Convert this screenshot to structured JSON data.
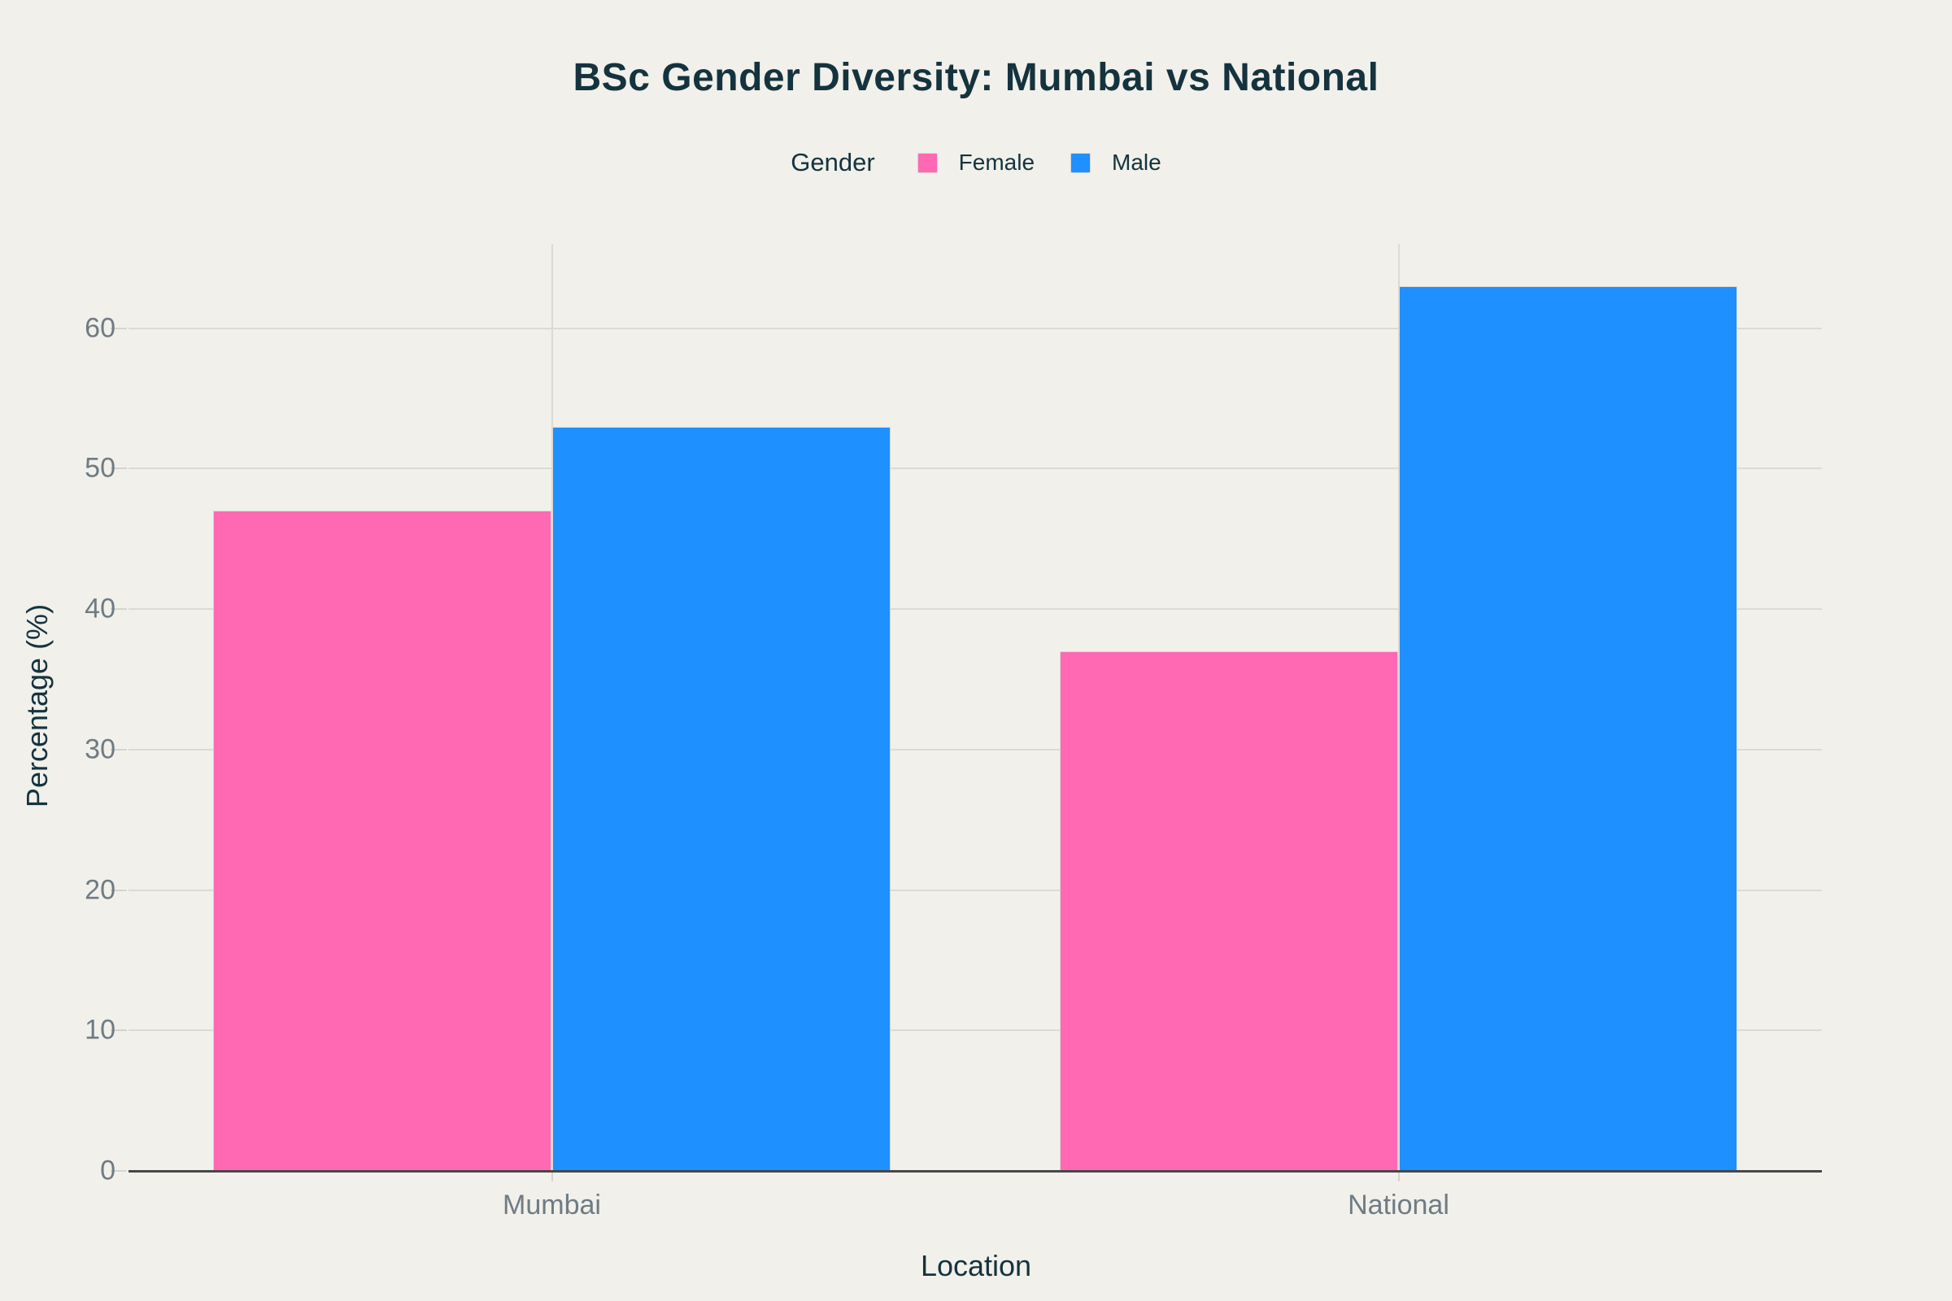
{
  "title": "BSc Gender Diversity: Mumbai vs National",
  "legend": {
    "title": "Gender"
  },
  "chart_data": {
    "type": "bar",
    "title": "BSc Gender Diversity: Mumbai vs National",
    "categories": [
      "Mumbai",
      "National"
    ],
    "series": [
      {
        "name": "Female",
        "color": "#FF69B4",
        "values": [
          47,
          37
        ]
      },
      {
        "name": "Male",
        "color": "#1E90FF",
        "values": [
          53,
          63
        ]
      }
    ],
    "xlabel": "Location",
    "ylabel": "Percentage (%)",
    "ylim": [
      0,
      66
    ],
    "yticks": [
      0,
      10,
      20,
      30,
      40,
      50,
      60
    ],
    "grid": true,
    "legend_title": "Gender",
    "legend_position": "top-center",
    "bargap": 0.2
  },
  "colors": {
    "background": "#F1F0EA",
    "grid": "#DBDAD4",
    "axis_line": "#474747",
    "tick_text": "#6F7B84",
    "heading_text": "#14333E",
    "female": "#FF69B4",
    "male": "#1E90FF"
  }
}
